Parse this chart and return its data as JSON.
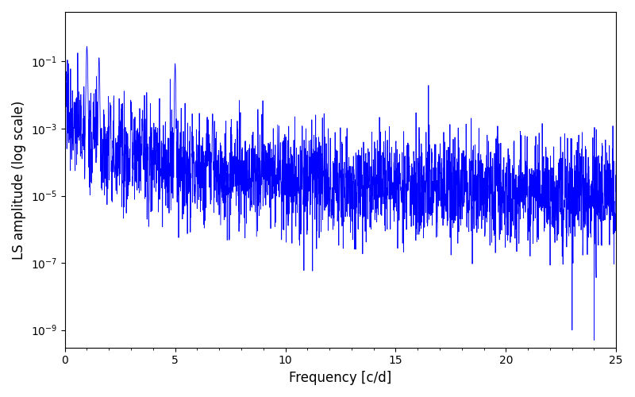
{
  "xlabel": "Frequency [c/d]",
  "ylabel": "LS amplitude (log scale)",
  "line_color": "#0000ff",
  "xlim": [
    0,
    25
  ],
  "ylim": [
    3e-10,
    3.0
  ],
  "xfreq_max": 25,
  "n_points": 3000,
  "seed": 77,
  "figsize": [
    8.0,
    5.0
  ],
  "dpi": 100,
  "linewidth": 0.6
}
